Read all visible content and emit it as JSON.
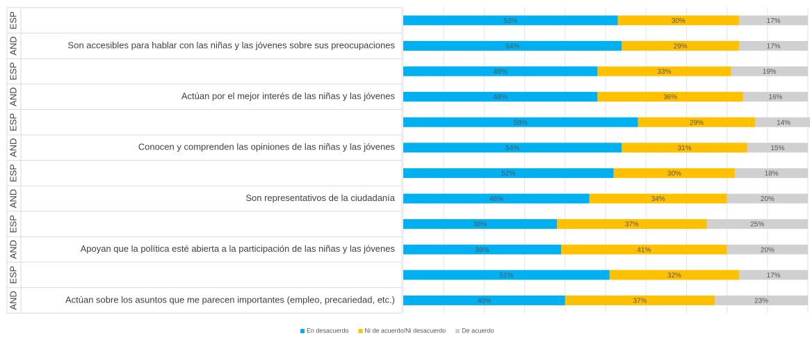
{
  "chart_data": {
    "type": "stacked-barh",
    "regions": [
      "ESP",
      "AND",
      "ESP",
      "AND",
      "ESP",
      "AND",
      "ESP",
      "AND",
      "ESP",
      "AND",
      "ESP",
      "AND"
    ],
    "categories": [
      null,
      "Son accesibles para hablar con las niñas y las jóvenes sobre sus preocupaciones",
      null,
      "Actúan por el mejor interés de las niñas y las jóvenes",
      null,
      "Conocen y comprenden las opiniones de las niñas y las jóvenes",
      null,
      "Son representativos de la ciudadanía",
      null,
      "Apoyan que la política esté abierta a la participación de las niñas y las jóvenes",
      null,
      "Actúan sobre los asuntos que me parecen importantes (empleo, precariedad, etc.)"
    ],
    "series": [
      {
        "name": "En desacuerdo",
        "color": "#00b0f0",
        "values": [
          53,
          54,
          48,
          48,
          58,
          54,
          52,
          46,
          38,
          39,
          51,
          40
        ],
        "value_labels": [
          "53%",
          "54%",
          "48%",
          "48%",
          "58%",
          "54%",
          "52%",
          "46%",
          "38%",
          "39%",
          "51%",
          "40%"
        ]
      },
      {
        "name": "Ni de acuerdo/Ni desacuerdo",
        "color": "#ffc000",
        "values": [
          30,
          29,
          33,
          36,
          29,
          31,
          30,
          34,
          37,
          41,
          32,
          37
        ],
        "value_labels": [
          "30%",
          "29%",
          "33%",
          "36%",
          "29%",
          "31%",
          "30%",
          "34%",
          "37%",
          "41%",
          "32%",
          "37%"
        ]
      },
      {
        "name": "De acuerdo",
        "color": "#d0d0d0",
        "values": [
          17,
          17,
          19,
          16,
          14,
          15,
          18,
          20,
          25,
          20,
          17,
          23
        ],
        "value_labels": [
          "17%",
          "17%",
          "19%",
          "16%",
          "14%",
          "15%",
          "18%",
          "20%",
          "25%",
          "20%",
          "17%",
          "23%"
        ]
      }
    ],
    "xlim": [
      0,
      100
    ],
    "xticks": [
      0,
      10,
      20,
      30,
      40,
      50,
      60,
      70,
      80,
      90,
      100
    ],
    "grid": true,
    "legend": "bottom"
  }
}
